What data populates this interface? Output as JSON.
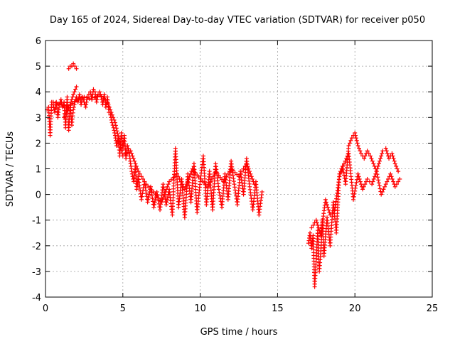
{
  "chart_data": {
    "type": "scatter",
    "title": "Day 165 of 2024, Sidereal Day-to-day VTEC variation (SDTVAR) for receiver p050",
    "xlabel": "GPS time / hours",
    "ylabel": "SDTVAR / TECUs",
    "xlim": [
      0,
      25
    ],
    "ylim": [
      -4,
      6
    ],
    "x_ticks": [
      0,
      5,
      10,
      15,
      20,
      25
    ],
    "y_ticks": [
      -4,
      -3,
      -2,
      -1,
      0,
      1,
      2,
      3,
      4,
      5,
      6
    ],
    "x_tick_labels": [
      "0",
      "5",
      "10",
      "15",
      "20",
      "25"
    ],
    "y_tick_labels": [
      "-4",
      "-3",
      "-2",
      "-1",
      "0",
      "1",
      "2",
      "3",
      "4",
      "5",
      "6"
    ],
    "grid": true,
    "marker": "plus",
    "color": "#ff0000",
    "series": [
      {
        "name": "SDTVAR",
        "x": [
          0.1,
          0.2,
          0.3,
          0.4,
          0.5,
          0.6,
          0.7,
          0.8,
          0.9,
          1.0,
          1.1,
          1.2,
          1.3,
          1.4,
          1.5,
          1.6,
          1.7,
          1.8,
          1.9,
          2.0,
          2.1,
          2.2,
          2.3,
          2.4,
          2.5,
          2.6,
          2.7,
          2.8,
          2.9,
          3.0,
          3.1,
          3.2,
          3.3,
          3.4,
          3.5,
          3.6,
          3.7,
          3.8,
          3.9,
          4.0,
          4.1,
          4.2,
          4.3,
          4.4,
          4.5,
          4.6,
          4.7,
          4.8,
          4.9,
          5.0,
          5.1,
          5.2,
          5.3,
          5.4,
          5.5,
          5.6,
          5.7,
          5.8,
          5.9,
          6.0,
          6.2,
          6.4,
          6.6,
          6.8,
          7.0,
          7.2,
          7.4,
          7.6,
          7.8,
          8.0,
          8.2,
          8.4,
          8.6,
          8.8,
          9.0,
          9.2,
          9.4,
          9.6,
          9.8,
          10.0,
          10.2,
          10.4,
          10.6,
          10.8,
          11.0,
          11.2,
          11.4,
          11.6,
          11.8,
          12.0,
          12.2,
          12.4,
          12.6,
          12.8,
          13.0,
          13.2,
          13.4,
          13.6,
          13.8,
          14.0,
          17.0,
          17.1,
          17.2,
          17.3,
          17.4,
          17.5,
          17.6,
          17.7,
          17.8,
          17.9,
          18.0,
          18.2,
          18.4,
          18.6,
          18.8,
          19.0,
          19.2,
          19.4,
          19.6,
          19.8,
          20.0,
          20.2,
          20.4,
          20.6,
          20.8,
          21.0,
          21.2,
          21.4,
          21.6,
          21.8,
          22.0,
          22.2,
          22.4,
          22.6,
          22.8,
          0.5,
          1.0,
          1.5,
          2.0,
          2.5,
          3.0,
          3.5,
          4.0,
          4.5,
          5.0,
          5.5,
          6.0,
          6.5,
          7.0,
          7.5,
          8.0,
          8.5,
          9.0,
          9.5,
          10.0,
          10.5,
          11.0,
          11.5,
          12.0,
          12.5,
          13.0,
          13.5,
          17.2,
          17.5,
          17.8,
          18.1,
          18.4,
          18.7,
          19.0,
          19.3,
          19.6,
          19.9,
          20.2,
          20.5,
          20.8,
          21.1,
          21.4,
          21.7,
          22.0,
          22.3,
          22.6,
          22.9,
          1.2,
          1.4,
          1.6,
          1.8,
          2.0,
          1.5,
          1.6,
          1.7,
          1.8,
          1.9,
          2.0
        ],
        "y": [
          3.3,
          3.4,
          2.3,
          3.6,
          3.5,
          3.2,
          3.6,
          3.0,
          3.5,
          3.7,
          3.4,
          3.6,
          2.6,
          3.8,
          2.5,
          3.5,
          2.7,
          3.3,
          3.6,
          3.8,
          3.6,
          3.9,
          3.5,
          3.8,
          3.6,
          3.4,
          3.8,
          3.9,
          4.0,
          3.7,
          4.1,
          4.0,
          3.6,
          3.9,
          4.0,
          3.8,
          3.5,
          3.9,
          3.4,
          3.8,
          3.2,
          3.1,
          2.8,
          2.6,
          2.3,
          1.9,
          2.2,
          1.5,
          2.4,
          1.8,
          2.3,
          1.4,
          1.9,
          1.7,
          1.2,
          0.8,
          0.5,
          1.1,
          0.2,
          0.7,
          -0.2,
          0.5,
          -0.3,
          0.3,
          -0.5,
          0.1,
          -0.6,
          0.4,
          -0.4,
          0.2,
          -0.8,
          1.8,
          -0.5,
          0.6,
          -0.9,
          0.8,
          -0.3,
          1.2,
          -0.7,
          0.5,
          1.5,
          -0.4,
          0.9,
          -0.6,
          1.2,
          0.2,
          -0.5,
          0.8,
          -0.2,
          1.3,
          0.4,
          -0.4,
          0.9,
          0.0,
          1.4,
          0.3,
          -0.6,
          0.5,
          -0.8,
          0.1,
          -1.9,
          -1.5,
          -2.1,
          -1.6,
          -3.6,
          -2.5,
          -1.4,
          -3.0,
          -2.2,
          -1.0,
          -2.4,
          -0.9,
          -2.0,
          -0.3,
          -1.5,
          0.8,
          1.1,
          0.4,
          1.9,
          2.2,
          2.4,
          1.9,
          1.6,
          1.4,
          1.7,
          1.5,
          1.2,
          0.9,
          1.3,
          1.7,
          1.8,
          1.4,
          1.6,
          1.2,
          0.9,
          3.6,
          3.5,
          3.4,
          3.7,
          3.8,
          3.7,
          3.9,
          3.6,
          2.8,
          1.5,
          1.7,
          0.9,
          0.4,
          0.1,
          -0.3,
          0.5,
          0.8,
          0.2,
          1.0,
          0.6,
          0.3,
          0.9,
          0.5,
          1.0,
          0.7,
          1.2,
          0.4,
          -1.3,
          -1.0,
          -1.6,
          -0.2,
          -0.8,
          -0.6,
          0.7,
          1.2,
          1.6,
          -0.2,
          0.8,
          0.2,
          0.6,
          0.4,
          0.9,
          0.0,
          0.4,
          0.8,
          0.3,
          0.6,
          3.0,
          3.3,
          3.5,
          3.9,
          4.2,
          4.9,
          5.0,
          5.0,
          5.1,
          5.0,
          4.9
        ]
      }
    ]
  }
}
